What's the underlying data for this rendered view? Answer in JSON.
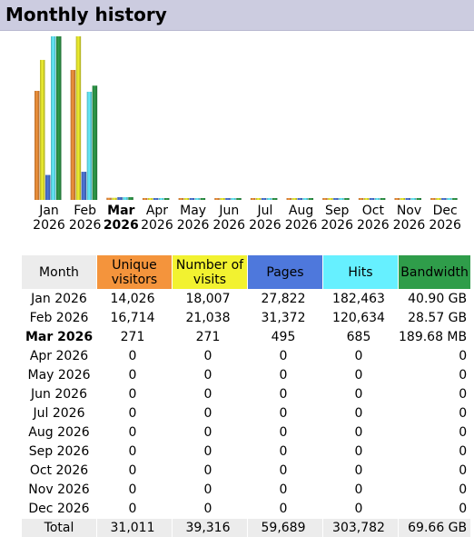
{
  "header": {
    "title": "Monthly history"
  },
  "colors": {
    "unique_visitors": "#f4943c",
    "visits": "#f2f230",
    "pages": "#4e78dc",
    "hits": "#66f0ff",
    "bandwidth": "#2f9d4a",
    "title_bg": "#cccce0"
  },
  "chart_data": {
    "type": "bar",
    "categories": [
      "Jan 2026",
      "Feb 2026",
      "Mar 2026",
      "Apr 2026",
      "May 2026",
      "Jun 2026",
      "Jul 2026",
      "Aug 2026",
      "Sep 2026",
      "Oct 2026",
      "Nov 2026",
      "Dec 2026"
    ],
    "current_category": "Mar 2026",
    "series": [
      {
        "name": "Unique visitors",
        "values": [
          14026,
          16714,
          271,
          0,
          0,
          0,
          0,
          0,
          0,
          0,
          0,
          0
        ]
      },
      {
        "name": "Number of visits",
        "values": [
          18007,
          21038,
          271,
          0,
          0,
          0,
          0,
          0,
          0,
          0,
          0,
          0
        ]
      },
      {
        "name": "Pages",
        "values": [
          27822,
          31372,
          495,
          0,
          0,
          0,
          0,
          0,
          0,
          0,
          0,
          0
        ]
      },
      {
        "name": "Hits",
        "values": [
          182463,
          120634,
          685,
          0,
          0,
          0,
          0,
          0,
          0,
          0,
          0,
          0
        ]
      },
      {
        "name": "Bandwidth (GB)",
        "values": [
          40.9,
          28.57,
          0.18968,
          0,
          0,
          0,
          0,
          0,
          0,
          0,
          0,
          0
        ]
      }
    ]
  },
  "month_labels": [
    {
      "m": "Jan",
      "y": "2026"
    },
    {
      "m": "Feb",
      "y": "2026"
    },
    {
      "m": "Mar",
      "y": "2026"
    },
    {
      "m": "Apr",
      "y": "2026"
    },
    {
      "m": "May",
      "y": "2026"
    },
    {
      "m": "Jun",
      "y": "2026"
    },
    {
      "m": "Jul",
      "y": "2026"
    },
    {
      "m": "Aug",
      "y": "2026"
    },
    {
      "m": "Sep",
      "y": "2026"
    },
    {
      "m": "Oct",
      "y": "2026"
    },
    {
      "m": "Nov",
      "y": "2026"
    },
    {
      "m": "Dec",
      "y": "2026"
    }
  ],
  "table": {
    "headers": {
      "month": "Month",
      "unique": "Unique visitors",
      "visits": "Number of visits",
      "pages": "Pages",
      "hits": "Hits",
      "bandwidth": "Bandwidth"
    },
    "rows": [
      {
        "month": "Jan 2026",
        "unique": "14,026",
        "visits": "18,007",
        "pages": "27,822",
        "hits": "182,463",
        "bandwidth": "40.90 GB"
      },
      {
        "month": "Feb 2026",
        "unique": "16,714",
        "visits": "21,038",
        "pages": "31,372",
        "hits": "120,634",
        "bandwidth": "28.57 GB"
      },
      {
        "month": "Mar 2026",
        "unique": "271",
        "visits": "271",
        "pages": "495",
        "hits": "685",
        "bandwidth": "189.68 MB"
      },
      {
        "month": "Apr 2026",
        "unique": "0",
        "visits": "0",
        "pages": "0",
        "hits": "0",
        "bandwidth": "0"
      },
      {
        "month": "May 2026",
        "unique": "0",
        "visits": "0",
        "pages": "0",
        "hits": "0",
        "bandwidth": "0"
      },
      {
        "month": "Jun 2026",
        "unique": "0",
        "visits": "0",
        "pages": "0",
        "hits": "0",
        "bandwidth": "0"
      },
      {
        "month": "Jul 2026",
        "unique": "0",
        "visits": "0",
        "pages": "0",
        "hits": "0",
        "bandwidth": "0"
      },
      {
        "month": "Aug 2026",
        "unique": "0",
        "visits": "0",
        "pages": "0",
        "hits": "0",
        "bandwidth": "0"
      },
      {
        "month": "Sep 2026",
        "unique": "0",
        "visits": "0",
        "pages": "0",
        "hits": "0",
        "bandwidth": "0"
      },
      {
        "month": "Oct 2026",
        "unique": "0",
        "visits": "0",
        "pages": "0",
        "hits": "0",
        "bandwidth": "0"
      },
      {
        "month": "Nov 2026",
        "unique": "0",
        "visits": "0",
        "pages": "0",
        "hits": "0",
        "bandwidth": "0"
      },
      {
        "month": "Dec 2026",
        "unique": "0",
        "visits": "0",
        "pages": "0",
        "hits": "0",
        "bandwidth": "0"
      }
    ],
    "total": {
      "month": "Total",
      "unique": "31,011",
      "visits": "39,316",
      "pages": "59,689",
      "hits": "303,782",
      "bandwidth": "69.66 GB"
    }
  }
}
